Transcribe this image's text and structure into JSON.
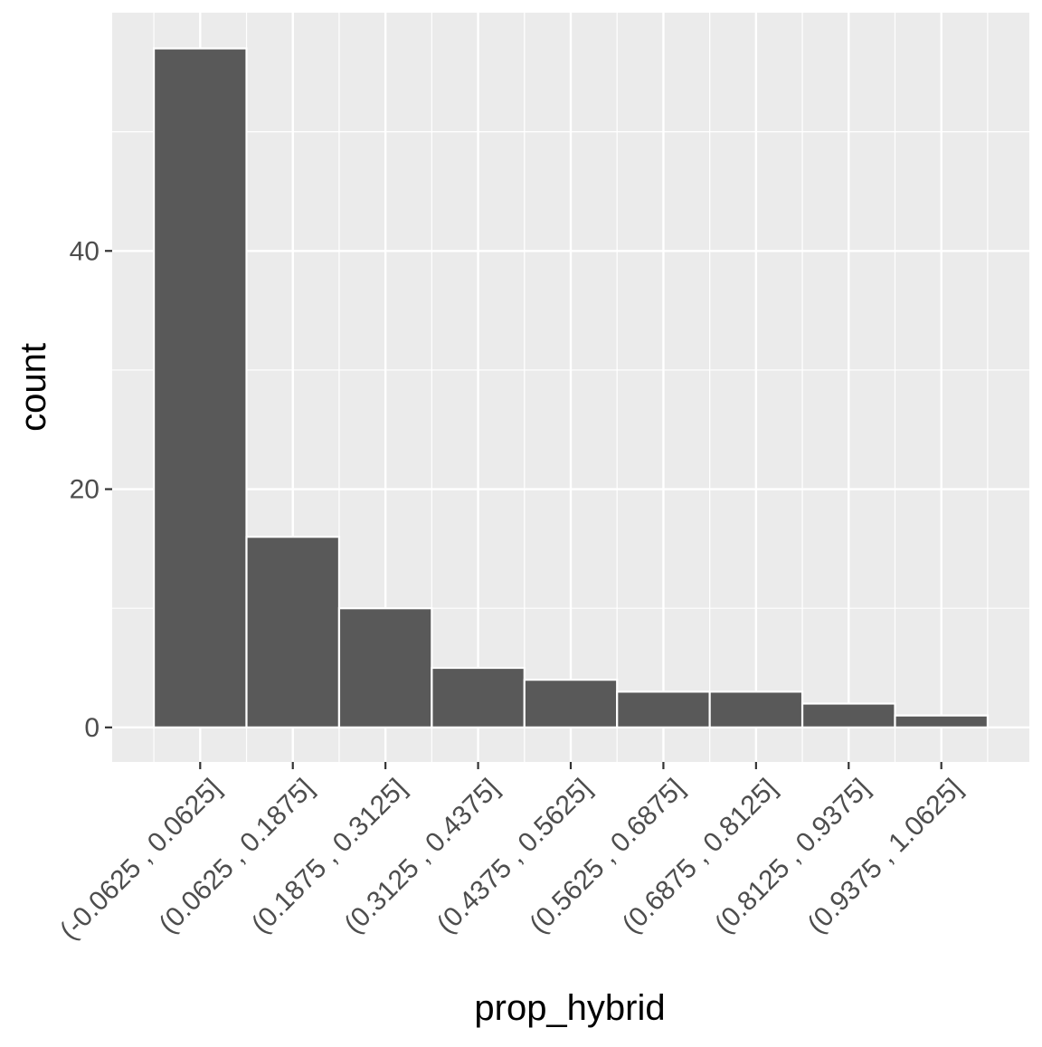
{
  "chart_data": {
    "type": "bar",
    "title": "",
    "xlabel": "prop_hybrid",
    "ylabel": "count",
    "categories": [
      "(-0.0625 , 0.0625]",
      "(0.0625 , 0.1875]",
      "(0.1875 , 0.3125]",
      "(0.3125 , 0.4375]",
      "(0.4375 , 0.5625]",
      "(0.5625 , 0.6875]",
      "(0.6875 , 0.8125]",
      "(0.8125 , 0.9375]",
      "(0.9375 , 1.0625]"
    ],
    "values": [
      57,
      16,
      10,
      5,
      4,
      3,
      3,
      2,
      1
    ],
    "x_range": [
      -0.0625,
      1.0625
    ],
    "x_bin_width": 0.125,
    "x_ticks": [
      0,
      0.125,
      0.25,
      0.375,
      0.5,
      0.625,
      0.75,
      0.875,
      1
    ],
    "ylim": [
      -2.9,
      60
    ],
    "y_ticks": [
      0,
      20,
      40
    ],
    "y_tick_labels": [
      "0",
      "20",
      "40"
    ],
    "grid": true,
    "legend": "none",
    "colors": {
      "panel": "#ebebeb",
      "grid": "#ffffff",
      "bar_fill": "#595959",
      "bar_outline": "#ffffff",
      "tick": "#333333",
      "tick_label": "#4d4d4d",
      "axis_title": "#000000"
    }
  }
}
